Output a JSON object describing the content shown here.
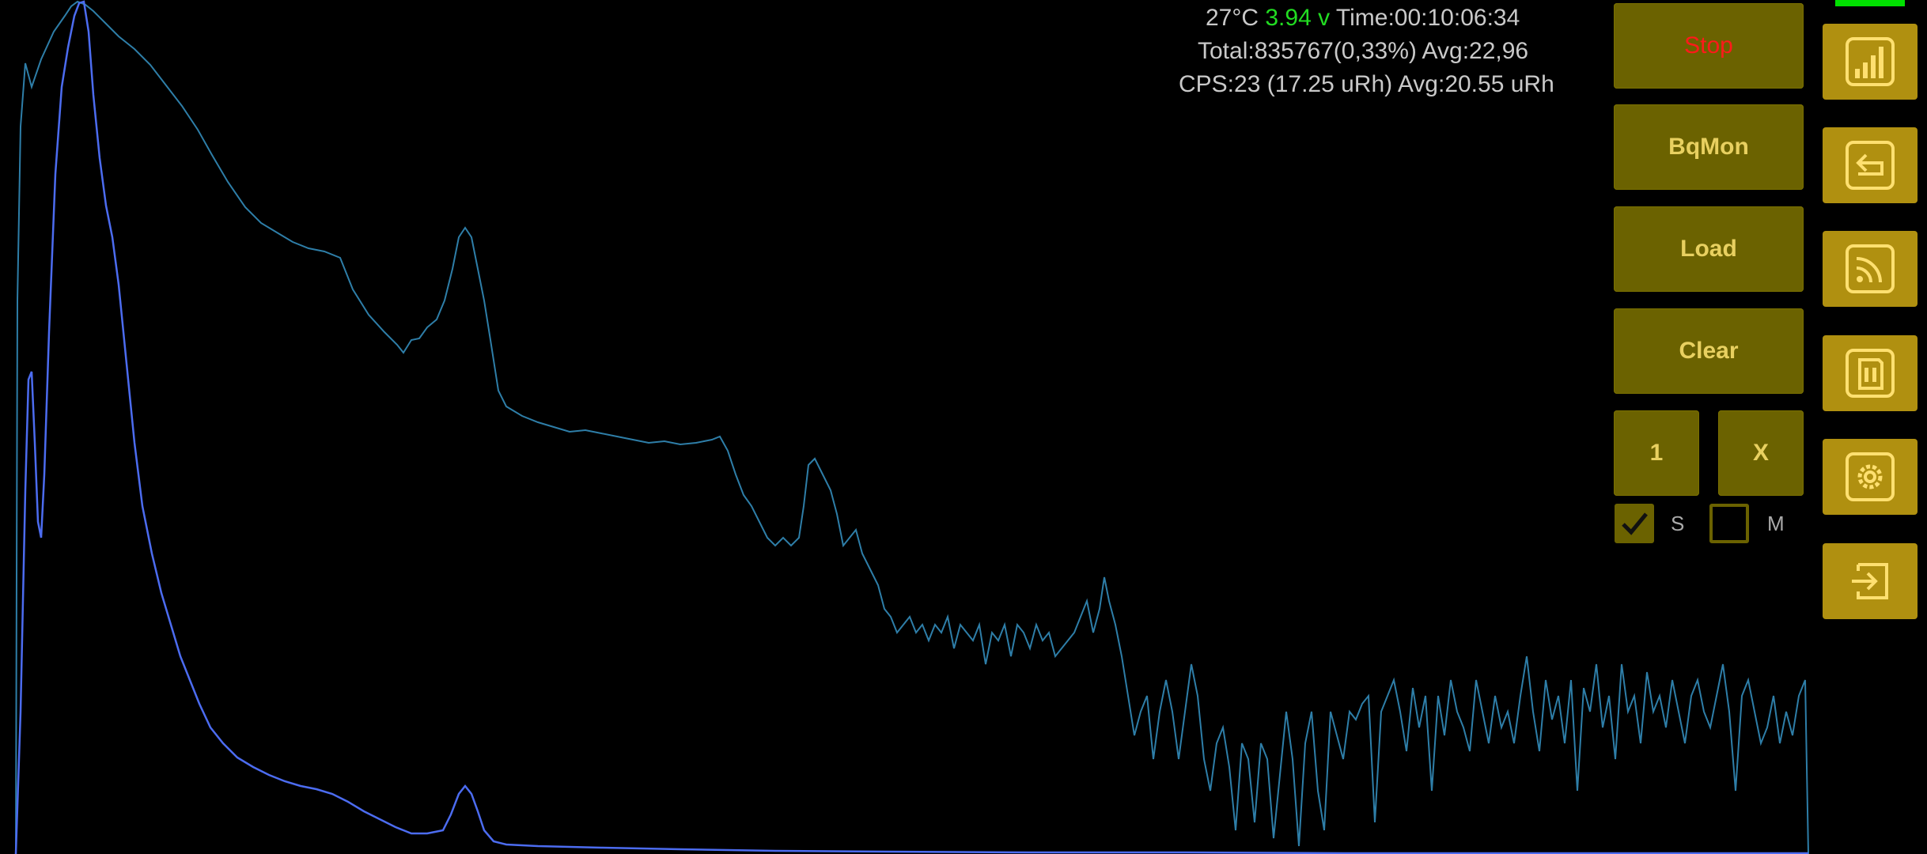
{
  "status": {
    "temperature": "27°C",
    "voltage": "3.94 v",
    "time": "Time:00:10:06:34",
    "total": "Total:835767(0,33%) Avg:22,96",
    "cps": "CPS:23 (17.25 uRh) Avg:20.55 uRh"
  },
  "colors": {
    "background": "#000000",
    "button_bg": "#6b6200",
    "button_text": "#e8d060",
    "stop_text": "#ff1a1a",
    "side_button_bg": "#b09010",
    "voltage": "#22dd22",
    "battery": "#00e000",
    "spectrum_log": "#2e7ea8",
    "spectrum_linear": "#4c6cf0"
  },
  "buttons": {
    "stop": "Stop",
    "bqmon": "BqMon",
    "load": "Load",
    "clear": "Clear",
    "one": "1",
    "x": "X"
  },
  "checkboxes": {
    "s": {
      "label": "S",
      "checked": true
    },
    "m": {
      "label": "M",
      "checked": false
    }
  },
  "side_buttons": [
    {
      "icon": "signal-bars-icon"
    },
    {
      "icon": "back-arrow-icon"
    },
    {
      "icon": "broadcast-icon"
    },
    {
      "icon": "sd-card-icon"
    },
    {
      "icon": "gear-icon"
    },
    {
      "icon": "login-icon"
    }
  ]
}
